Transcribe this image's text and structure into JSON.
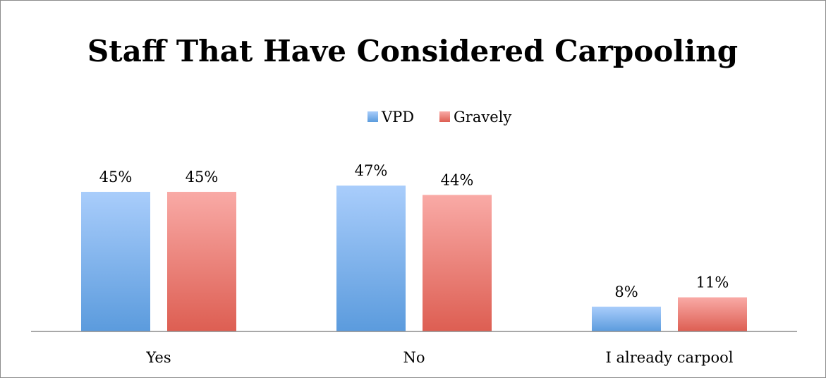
{
  "chart_data": {
    "type": "bar",
    "title": "Staff That Have Considered Carpooling",
    "categories": [
      "Yes",
      "No",
      "I already carpool"
    ],
    "series": [
      {
        "name": "VPD",
        "values": [
          45,
          47,
          8
        ],
        "labels": [
          "45%",
          "47%",
          "8%"
        ],
        "color_top": "#a9cdfb",
        "color_bottom": "#5b9bdd"
      },
      {
        "name": "Gravely",
        "values": [
          45,
          44,
          11
        ],
        "labels": [
          "45%",
          "44%",
          "11%"
        ],
        "color_top": "#f9aaa6",
        "color_bottom": "#dd5e52"
      }
    ],
    "ylim": [
      0,
      50
    ],
    "legend": "top-center",
    "grid": false,
    "axis_color": "#8c8c8c"
  }
}
